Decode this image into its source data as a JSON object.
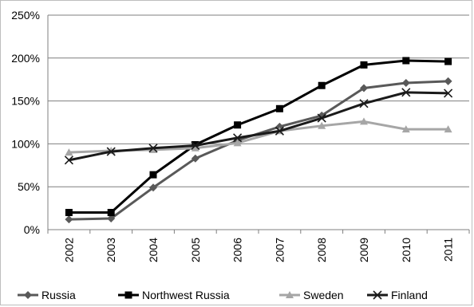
{
  "chart_data": {
    "type": "line",
    "title": "",
    "xlabel": "",
    "ylabel": "",
    "x": [
      "2002",
      "2003",
      "2004",
      "2005",
      "2006",
      "2007",
      "2008",
      "2009",
      "2010",
      "2011"
    ],
    "ylim": [
      0,
      250
    ],
    "yticks": [
      0,
      50,
      100,
      150,
      200,
      250
    ],
    "ytick_labels": [
      "0%",
      "50%",
      "100%",
      "150%",
      "200%",
      "250%"
    ],
    "grid": "horizontal",
    "legend_position": "bottom",
    "series": [
      {
        "name": "Russia",
        "marker": "diamond",
        "color": "#595959",
        "values": [
          12,
          13,
          49,
          83,
          104,
          120,
          133,
          165,
          171,
          173
        ]
      },
      {
        "name": "Northwest Russia",
        "marker": "square",
        "color": "#000000",
        "values": [
          20,
          20,
          64,
          99,
          122,
          141,
          168,
          192,
          197,
          196
        ]
      },
      {
        "name": "Sweden",
        "marker": "triangle",
        "color": "#a6a6a6",
        "values": [
          90,
          92,
          93,
          95,
          101,
          115,
          121,
          126,
          117,
          117
        ]
      },
      {
        "name": "Finland",
        "marker": "x",
        "color": "#1a1a1a",
        "values": [
          81,
          91,
          95,
          98,
          107,
          115,
          130,
          147,
          160,
          159
        ]
      }
    ]
  }
}
